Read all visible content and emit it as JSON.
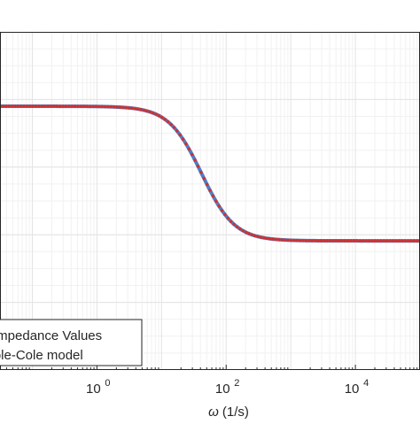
{
  "chart_data": {
    "type": "scatter",
    "title": "",
    "xlabel": "ω (1/s)",
    "ylabel": "",
    "x_scale": "log",
    "xlim_decades": [
      -1.5,
      5.0
    ],
    "x_tick_labels": [
      {
        "base": "10",
        "exp": "0",
        "value": 1
      },
      {
        "base": "10",
        "exp": "2",
        "value": 100
      },
      {
        "base": "10",
        "exp": "4",
        "value": 10000
      }
    ],
    "grid": true,
    "minor_grid": true,
    "legend_position": "bottom-left",
    "series": [
      {
        "name": "Impedance Values",
        "style": "markers",
        "color": "#cc3333",
        "points": [
          [
            0.0316,
            0.78
          ],
          [
            0.1,
            0.78
          ],
          [
            0.316,
            0.779
          ],
          [
            1,
            0.778
          ],
          [
            2,
            0.776
          ],
          [
            3.16,
            0.774
          ],
          [
            5,
            0.77
          ],
          [
            7.9,
            0.76
          ],
          [
            10,
            0.75
          ],
          [
            12.6,
            0.74
          ],
          [
            15.8,
            0.725
          ],
          [
            20,
            0.705
          ],
          [
            25,
            0.68
          ],
          [
            31.6,
            0.65
          ],
          [
            39.8,
            0.615
          ],
          [
            50,
            0.578
          ],
          [
            63,
            0.54
          ],
          [
            79,
            0.505
          ],
          [
            100,
            0.472
          ],
          [
            126,
            0.445
          ],
          [
            158,
            0.425
          ],
          [
            200,
            0.41
          ],
          [
            251,
            0.398
          ],
          [
            316,
            0.392
          ],
          [
            398,
            0.387
          ],
          [
            501,
            0.385
          ],
          [
            1000,
            0.383
          ],
          [
            3162,
            0.382
          ],
          [
            10000,
            0.382
          ],
          [
            31623,
            0.382
          ],
          [
            100000,
            0.382
          ]
        ]
      },
      {
        "name": "Cole-Cole model",
        "style": "line",
        "color": "#4f7ec3",
        "points": [
          [
            0.0316,
            0.78
          ],
          [
            1,
            0.778
          ],
          [
            3.16,
            0.774
          ],
          [
            10,
            0.75
          ],
          [
            31.6,
            0.65
          ],
          [
            100,
            0.472
          ],
          [
            316,
            0.392
          ],
          [
            1000,
            0.383
          ],
          [
            100000,
            0.382
          ]
        ]
      }
    ],
    "legend_entries": [
      {
        "label": "Impedance Values"
      },
      {
        "label": "Cole-Cole model"
      }
    ],
    "x_axis_label": {
      "symbol": "ω",
      "unit": "(1/s)"
    },
    "colors": {
      "data_marker": "#cc3333",
      "model_line": "#4f7ec3",
      "grid_major": "#e3e3e3",
      "grid_minor": "#f1f1f1",
      "axes": "#262626"
    }
  }
}
